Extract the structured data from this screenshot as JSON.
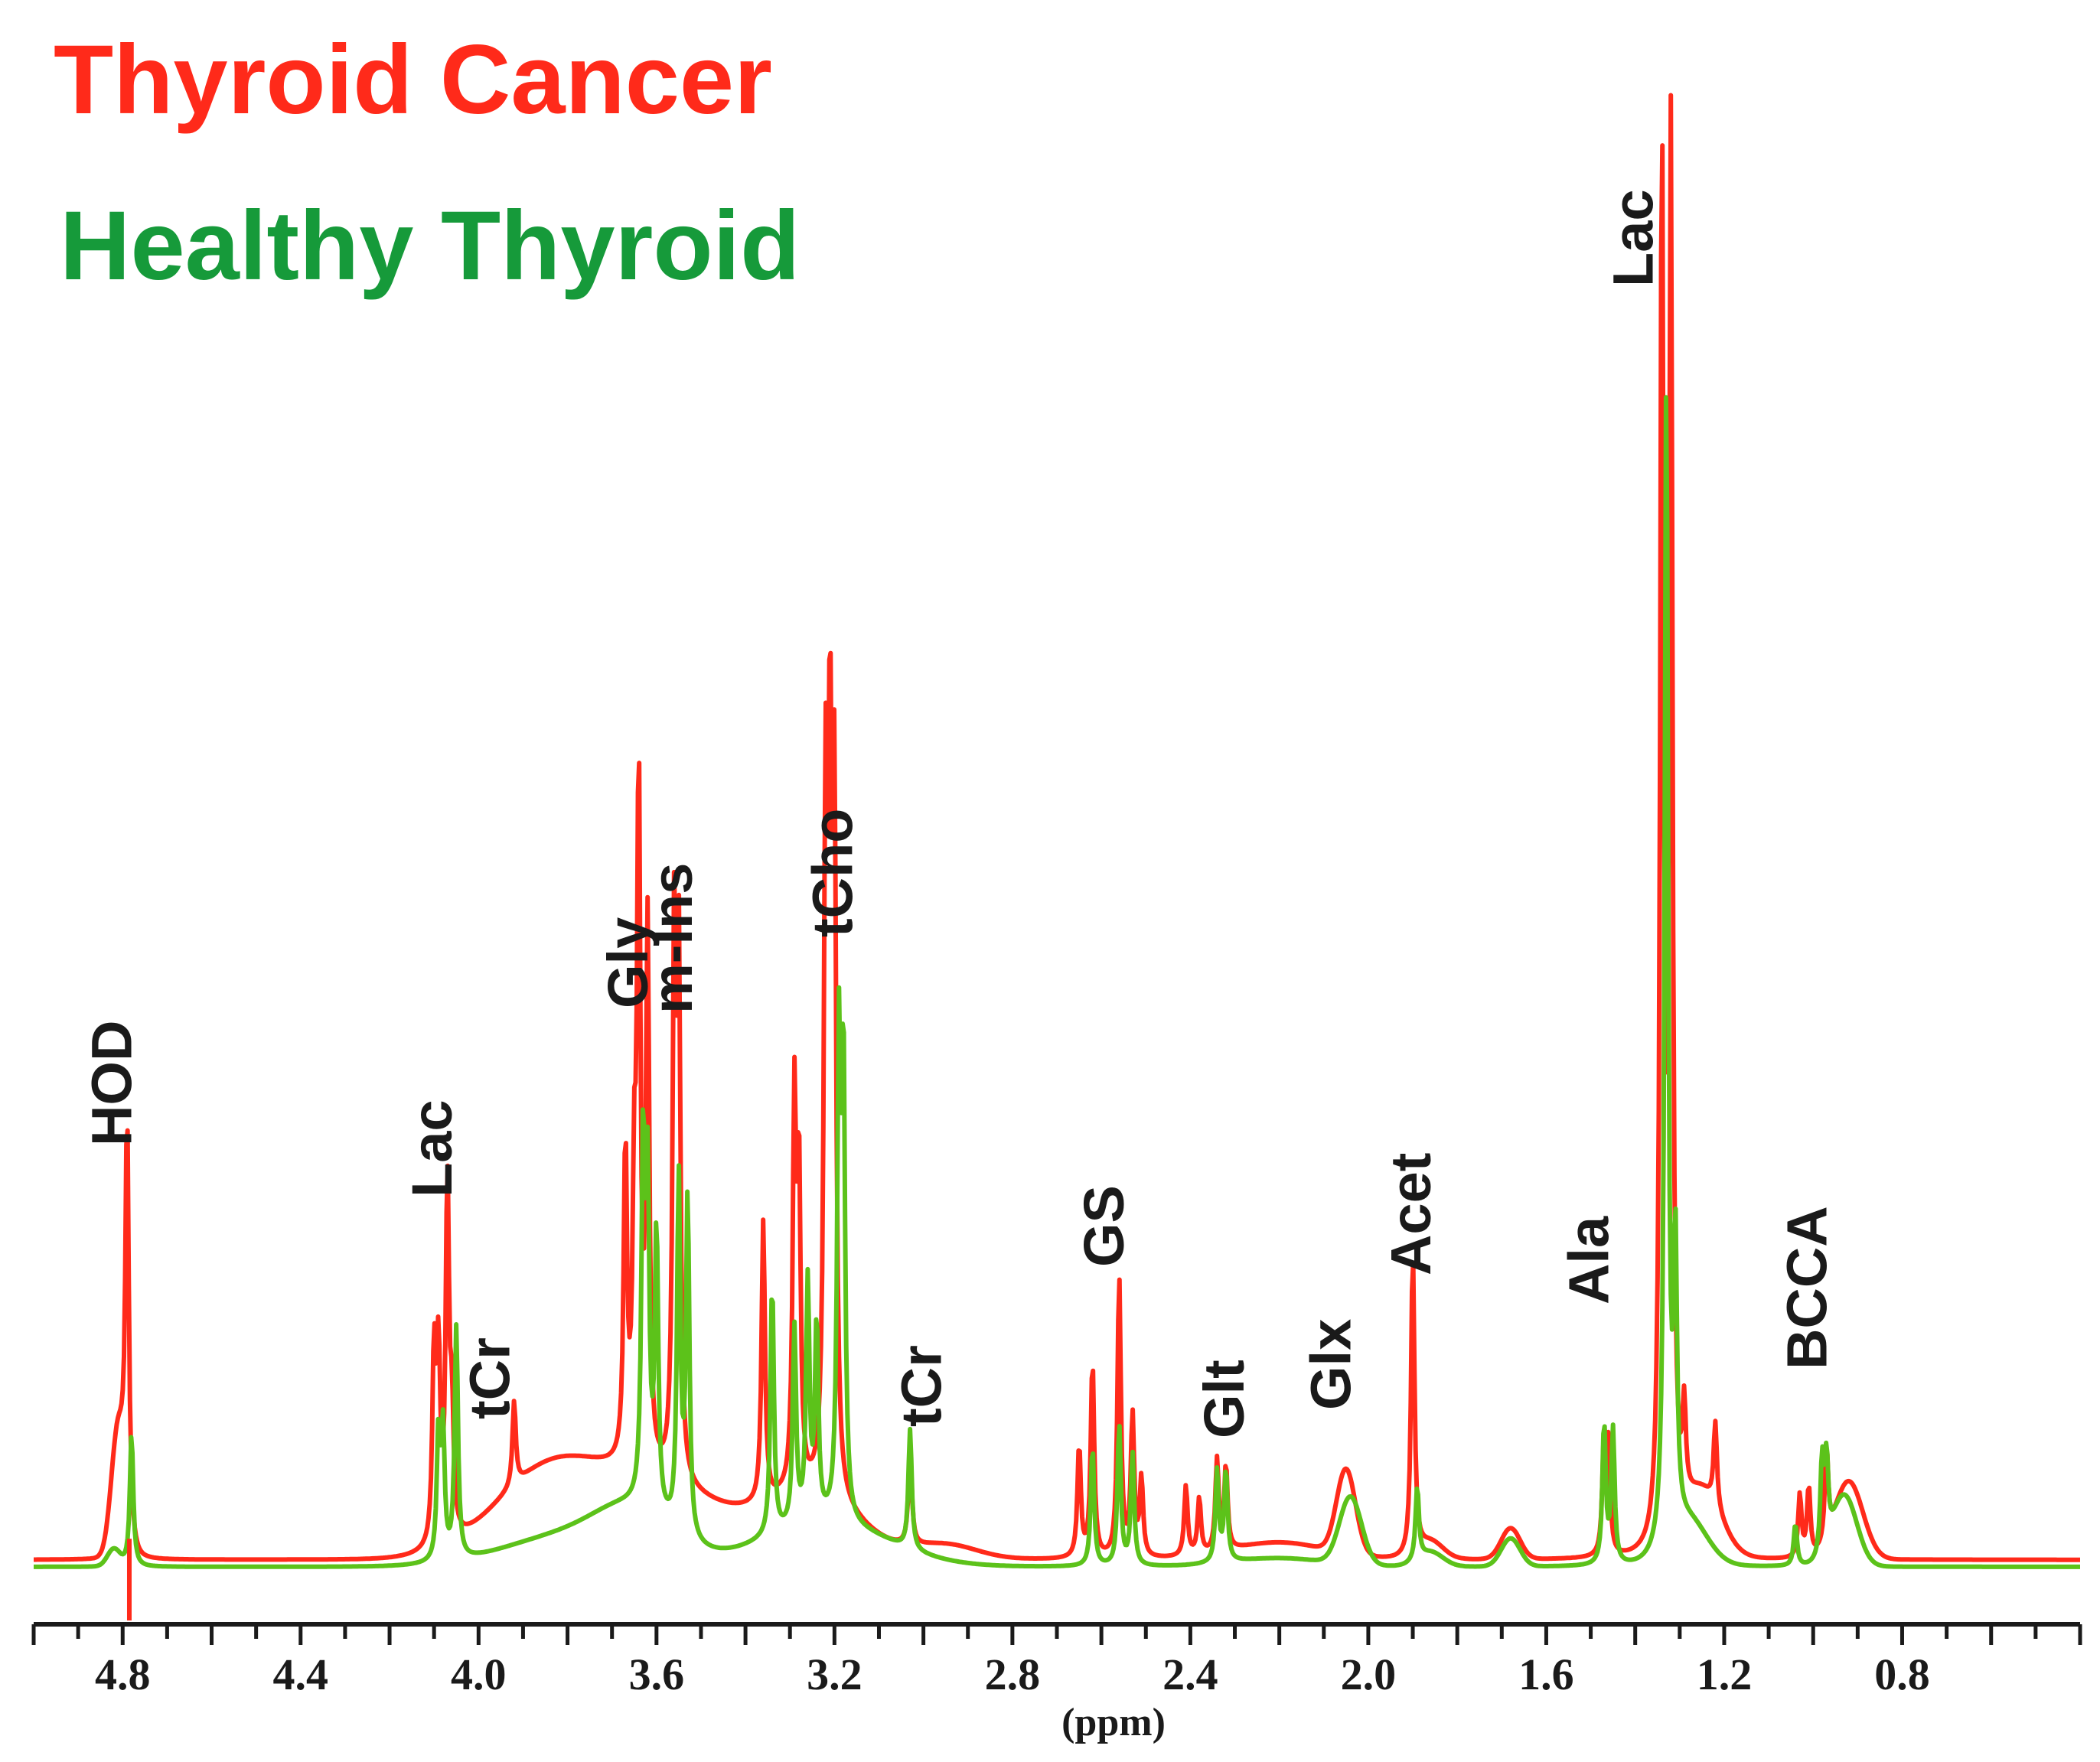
{
  "chart_data": {
    "type": "line",
    "xlabel": "(ppm)",
    "ylabel": "",
    "x_reversed": true,
    "xlim": [
      5.0,
      0.4
    ],
    "ylim": [
      0,
      1.0
    ],
    "grid": false,
    "legend_position": "top-left",
    "tick_labels": [
      "4.8",
      "4.4",
      "4.0",
      "3.6",
      "3.2",
      "2.8",
      "2.4",
      "2.0",
      "1.6",
      "1.2",
      "0.8"
    ],
    "series": [
      {
        "name": "Thyroid Cancer",
        "color": "#ff2a1a",
        "baseline": 0.005,
        "broad": [
          [
            4.81,
            0.088,
            0.022
          ],
          [
            3.85,
            0.055,
            0.17
          ],
          [
            3.6,
            0.05,
            0.22
          ],
          [
            3.25,
            0.04,
            0.15
          ],
          [
            2.05,
            0.06,
            0.03
          ],
          [
            2.2,
            0.012,
            0.15
          ],
          [
            1.68,
            0.022,
            0.03
          ],
          [
            1.86,
            0.012,
            0.04
          ],
          [
            1.25,
            0.045,
            0.06
          ],
          [
            0.92,
            0.055,
            0.045
          ],
          [
            2.95,
            0.01,
            0.1
          ]
        ],
        "peaks": [
          [
            4.79,
            0.285
          ],
          [
            4.1,
            0.135
          ],
          [
            4.09,
            0.13
          ],
          [
            4.07,
            0.253
          ],
          [
            4.06,
            0.08
          ],
          [
            3.92,
            0.06
          ],
          [
            3.67,
            0.225
          ],
          [
            3.65,
            0.17
          ],
          [
            3.64,
            0.48
          ],
          [
            3.62,
            0.38
          ],
          [
            3.56,
            0.38
          ],
          [
            3.55,
            0.36
          ],
          [
            3.36,
            0.2
          ],
          [
            3.29,
            0.27
          ],
          [
            3.28,
            0.22
          ],
          [
            3.22,
            0.46
          ],
          [
            3.21,
            0.48
          ],
          [
            3.2,
            0.46
          ],
          [
            3.03,
            0.07
          ],
          [
            2.65,
            0.08
          ],
          [
            2.62,
            0.14
          ],
          [
            2.56,
            0.2
          ],
          [
            2.53,
            0.1
          ],
          [
            2.51,
            0.055
          ],
          [
            2.41,
            0.05
          ],
          [
            2.38,
            0.04
          ],
          [
            2.34,
            0.065
          ],
          [
            2.32,
            0.06
          ],
          [
            1.9,
            0.215
          ],
          [
            1.47,
            0.08
          ],
          [
            1.46,
            0.075
          ],
          [
            1.34,
            1.0
          ],
          [
            1.32,
            0.98
          ],
          [
            1.29,
            0.065
          ],
          [
            1.22,
            0.06
          ],
          [
            1.03,
            0.045
          ],
          [
            1.01,
            0.05
          ],
          [
            0.97,
            0.065
          ]
        ]
      },
      {
        "name": "Healthy Thyroid",
        "color": "#5cc21a",
        "baseline": 0.0,
        "broad": [
          [
            4.82,
            0.012,
            0.02
          ],
          [
            3.8,
            0.022,
            0.2
          ],
          [
            3.65,
            0.03,
            0.12
          ],
          [
            3.22,
            0.03,
            0.2
          ],
          [
            2.04,
            0.048,
            0.035
          ],
          [
            2.2,
            0.006,
            0.15
          ],
          [
            1.68,
            0.02,
            0.03
          ],
          [
            1.86,
            0.01,
            0.04
          ],
          [
            1.28,
            0.03,
            0.06
          ],
          [
            0.93,
            0.05,
            0.04
          ]
        ],
        "peaks": [
          [
            4.78,
            0.095
          ],
          [
            4.09,
            0.09
          ],
          [
            4.08,
            0.09
          ],
          [
            4.05,
            0.165
          ],
          [
            3.63,
            0.255
          ],
          [
            3.62,
            0.22
          ],
          [
            3.6,
            0.2
          ],
          [
            3.55,
            0.25
          ],
          [
            3.53,
            0.24
          ],
          [
            3.34,
            0.18
          ],
          [
            3.29,
            0.14
          ],
          [
            3.26,
            0.17
          ],
          [
            3.24,
            0.14
          ],
          [
            3.19,
            0.325
          ],
          [
            3.18,
            0.32
          ],
          [
            3.03,
            0.085
          ],
          [
            2.62,
            0.085
          ],
          [
            2.56,
            0.1
          ],
          [
            2.53,
            0.08
          ],
          [
            2.34,
            0.065
          ],
          [
            2.32,
            0.065
          ],
          [
            1.89,
            0.052
          ],
          [
            1.47,
            0.1
          ],
          [
            1.45,
            0.095
          ],
          [
            1.33,
            0.835
          ],
          [
            1.31,
            0.2
          ],
          [
            1.04,
            0.03
          ],
          [
            0.98,
            0.065
          ],
          [
            0.97,
            0.06
          ]
        ]
      }
    ],
    "peak_labels": [
      {
        "text": "HOD",
        "ppm": 4.79
      },
      {
        "text": "Lac",
        "ppm": 4.07
      },
      {
        "text": "tCr",
        "ppm": 3.94
      },
      {
        "text": "Gly",
        "ppm": 3.63
      },
      {
        "text": "m-Ins",
        "ppm": 3.53
      },
      {
        "text": "tCho",
        "ppm": 3.17
      },
      {
        "text": "tCr",
        "ppm": 2.97
      },
      {
        "text": "GS",
        "ppm": 2.56
      },
      {
        "text": "Glt",
        "ppm": 2.29
      },
      {
        "text": "Glx",
        "ppm": 2.05
      },
      {
        "text": "Acet",
        "ppm": 1.87
      },
      {
        "text": "Ala",
        "ppm": 1.47
      },
      {
        "text": "Lac",
        "ppm": 1.37
      },
      {
        "text": "BCCA",
        "ppm": 0.98
      }
    ]
  }
}
